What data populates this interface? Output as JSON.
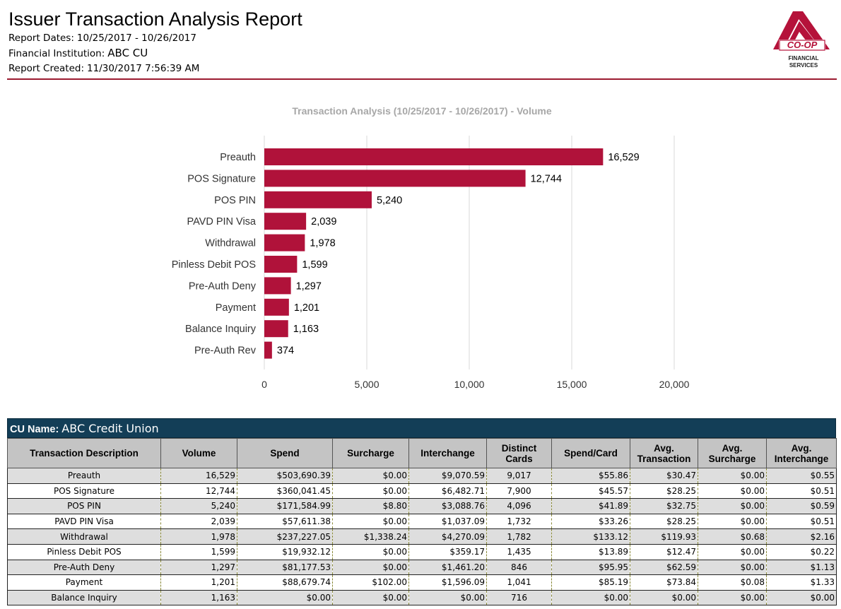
{
  "header": {
    "title": "Issuer Transaction Analysis Report",
    "report_dates_label": "Report Dates:",
    "report_dates_value": "10/25/2017 - 10/26/2017",
    "institution_label": "Financial Institution:",
    "institution_value": "ABC CU",
    "created_label": "Report Created:",
    "created_value": "11/30/2017 7:56:39 AM"
  },
  "logo": {
    "line1": "CO-OP",
    "line2": "FINANCIAL",
    "line3": "SERVICES",
    "color": "#b5123a"
  },
  "chart_data": {
    "type": "bar",
    "orientation": "horizontal",
    "title": "Transaction Analysis (10/25/2017 - 10/26/2017) - Volume",
    "categories": [
      "Preauth",
      "POS Signature",
      "POS PIN",
      "PAVD PIN Visa",
      "Withdrawal",
      "Pinless Debit POS",
      "Pre-Auth Deny",
      "Payment",
      "Balance Inquiry",
      "Pre-Auth Rev"
    ],
    "values": [
      16529,
      12744,
      5240,
      2039,
      1978,
      1599,
      1297,
      1201,
      1163,
      374
    ],
    "value_labels": [
      "16,529",
      "12,744",
      "5,240",
      "2,039",
      "1,978",
      "1,599",
      "1,297",
      "1,201",
      "1,163",
      "374"
    ],
    "xlim": [
      0,
      20000
    ],
    "xticks": [
      0,
      5000,
      10000,
      15000,
      20000
    ],
    "xtick_labels": [
      "0",
      "5,000",
      "10,000",
      "15,000",
      "20,000"
    ],
    "grid": true,
    "bar_color": "#b0123a"
  },
  "table": {
    "cu_label": "CU Name:",
    "cu_value": "ABC Credit Union",
    "headers": [
      "Transaction Description",
      "Volume",
      "Spend",
      "Surcharge",
      "Interchange",
      "Distinct Cards",
      "Spend/Card",
      "Avg. Transaction",
      "Avg. Surcharge",
      "Avg. Interchange"
    ],
    "rows": [
      [
        "Preauth",
        "16,529",
        "$503,690.39",
        "$0.00",
        "$9,070.59",
        "9,017",
        "$55.86",
        "$30.47",
        "$0.00",
        "$0.55"
      ],
      [
        "POS Signature",
        "12,744",
        "$360,041.45",
        "$0.00",
        "$6,482.71",
        "7,900",
        "$45.57",
        "$28.25",
        "$0.00",
        "$0.51"
      ],
      [
        "POS PIN",
        "5,240",
        "$171,584.99",
        "$8.80",
        "$3,088.76",
        "4,096",
        "$41.89",
        "$32.75",
        "$0.00",
        "$0.59"
      ],
      [
        "PAVD PIN Visa",
        "2,039",
        "$57,611.38",
        "$0.00",
        "$1,037.09",
        "1,732",
        "$33.26",
        "$28.25",
        "$0.00",
        "$0.51"
      ],
      [
        "Withdrawal",
        "1,978",
        "$237,227.05",
        "$1,338.24",
        "$4,270.09",
        "1,782",
        "$133.12",
        "$119.93",
        "$0.68",
        "$2.16"
      ],
      [
        "Pinless Debit POS",
        "1,599",
        "$19,932.12",
        "$0.00",
        "$359.17",
        "1,435",
        "$13.89",
        "$12.47",
        "$0.00",
        "$0.22"
      ],
      [
        "Pre-Auth Deny",
        "1,297",
        "$81,177.53",
        "$0.00",
        "$1,461.20",
        "846",
        "$95.95",
        "$62.59",
        "$0.00",
        "$1.13"
      ],
      [
        "Payment",
        "1,201",
        "$88,679.74",
        "$102.00",
        "$1,596.09",
        "1,041",
        "$85.19",
        "$73.84",
        "$0.08",
        "$1.33"
      ],
      [
        "Balance Inquiry",
        "1,163",
        "$0.00",
        "$0.00",
        "$0.00",
        "716",
        "$0.00",
        "$0.00",
        "$0.00",
        "$0.00"
      ]
    ]
  }
}
